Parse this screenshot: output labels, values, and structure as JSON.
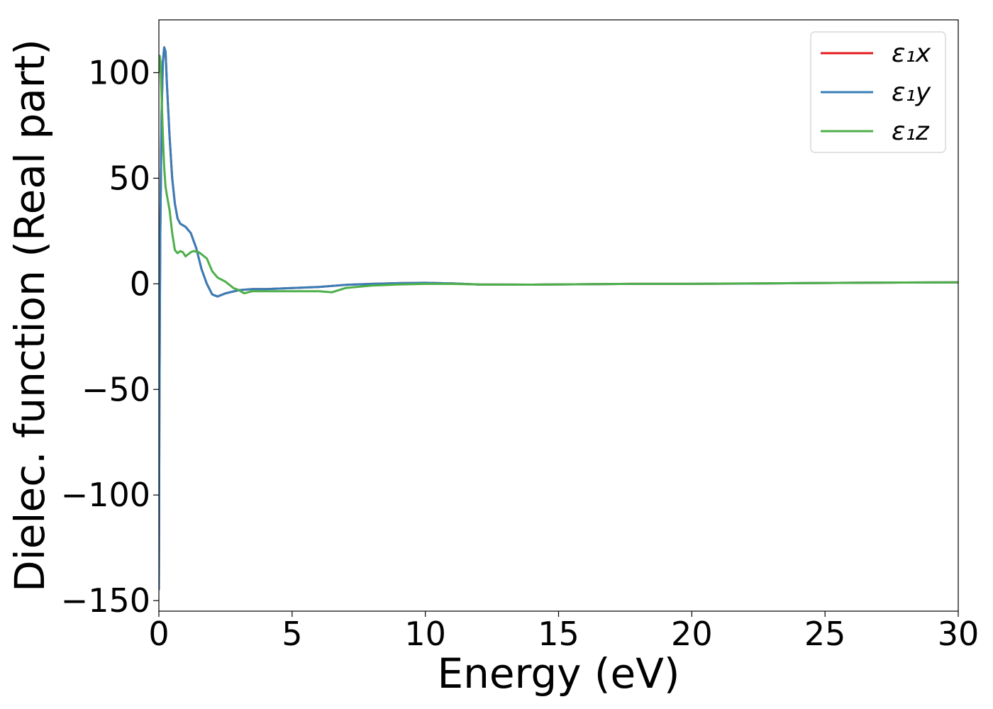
{
  "chart_data": {
    "type": "line",
    "xlabel": "Energy (eV)",
    "ylabel": "Dielec. function (Real part)",
    "xlim": [
      0,
      30
    ],
    "ylim": [
      -155,
      125
    ],
    "xticks": [
      0,
      5,
      10,
      15,
      20,
      25,
      30
    ],
    "xtick_labels": [
      "0",
      "5",
      "10",
      "15",
      "20",
      "25",
      "30"
    ],
    "yticks": [
      -150,
      -100,
      -50,
      0,
      50,
      100
    ],
    "ytick_labels": [
      "−150",
      "−100",
      "−50",
      "0",
      "50",
      "100"
    ],
    "grid": false,
    "legend_position": "top-right",
    "series": [
      {
        "name": "ε₁x",
        "color": "#e41a1c",
        "x": [
          0.0,
          0.02,
          0.05,
          0.1,
          0.15,
          0.2,
          0.25,
          0.3,
          0.4,
          0.5,
          0.6,
          0.7,
          0.8,
          1.0,
          1.2,
          1.4,
          1.6,
          1.8,
          2.0,
          2.2,
          2.5,
          3.0,
          3.5,
          4.0,
          5.0,
          6.0,
          7.0,
          8.0,
          9.0,
          10.0,
          11.0,
          12.0,
          14.0,
          16.0,
          18.0,
          20.0,
          22.0,
          24.0,
          26.0,
          28.0,
          30.0
        ],
        "y": [
          -145,
          -60,
          20,
          80,
          105,
          112,
          110,
          95,
          70,
          50,
          38,
          31,
          28.5,
          27,
          24,
          17,
          7,
          0,
          -5,
          -6,
          -4.5,
          -3,
          -2.5,
          -2.5,
          -2,
          -1.5,
          -0.5,
          0,
          0.3,
          0.5,
          0.2,
          -0.3,
          -0.4,
          -0.2,
          0,
          0,
          0.1,
          0.3,
          0.5,
          0.6,
          0.7
        ]
      },
      {
        "name": "ε₁y",
        "color": "#377eb8",
        "x": [
          0.0,
          0.02,
          0.05,
          0.1,
          0.15,
          0.2,
          0.25,
          0.3,
          0.4,
          0.5,
          0.6,
          0.7,
          0.8,
          1.0,
          1.2,
          1.4,
          1.6,
          1.8,
          2.0,
          2.2,
          2.5,
          3.0,
          3.5,
          4.0,
          5.0,
          6.0,
          7.0,
          8.0,
          9.0,
          10.0,
          11.0,
          12.0,
          14.0,
          16.0,
          18.0,
          20.0,
          22.0,
          24.0,
          26.0,
          28.0,
          30.0
        ],
        "y": [
          -145,
          -60,
          20,
          80,
          105,
          112,
          110,
          95,
          70,
          50,
          38,
          31,
          28.5,
          27,
          24,
          17,
          7,
          0,
          -5,
          -6,
          -4.5,
          -3,
          -2.5,
          -2.5,
          -2,
          -1.5,
          -0.5,
          0,
          0.3,
          0.5,
          0.2,
          -0.3,
          -0.4,
          -0.2,
          0,
          0,
          0.1,
          0.3,
          0.5,
          0.6,
          0.7
        ]
      },
      {
        "name": "ε₁z",
        "color": "#4daf4a",
        "x": [
          0.0,
          0.03,
          0.06,
          0.1,
          0.15,
          0.2,
          0.25,
          0.3,
          0.4,
          0.5,
          0.6,
          0.7,
          0.8,
          0.9,
          1.0,
          1.1,
          1.2,
          1.3,
          1.5,
          1.8,
          2.0,
          2.2,
          2.5,
          2.8,
          3.0,
          3.2,
          3.5,
          4.0,
          4.5,
          5.0,
          6.0,
          6.5,
          7.0,
          8.0,
          9.0,
          10.0,
          11.0,
          12.0,
          14.0,
          16.0,
          18.0,
          20.0,
          22.0,
          24.0,
          26.0,
          28.0,
          30.0
        ],
        "y": [
          100,
          108,
          105,
          90,
          70,
          55,
          46,
          42,
          35,
          24,
          16,
          14.5,
          15.5,
          15,
          13,
          14,
          15,
          15.5,
          15,
          12,
          6,
          3,
          1,
          -2,
          -3,
          -4.5,
          -3.5,
          -3.5,
          -3.5,
          -3.5,
          -3.5,
          -4,
          -2,
          -0.8,
          -0.3,
          0,
          0,
          -0.3,
          -0.4,
          -0.2,
          0,
          0,
          0.2,
          0.3,
          0.5,
          0.6,
          0.7
        ]
      }
    ]
  }
}
